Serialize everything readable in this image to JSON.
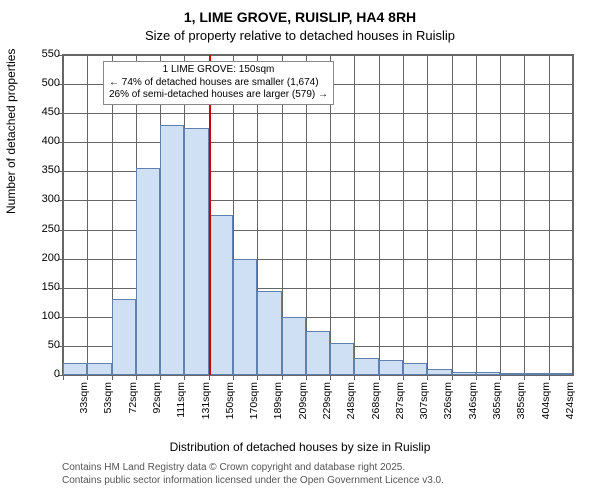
{
  "title": "1, LIME GROVE, RUISLIP, HA4 8RH",
  "subtitle": "Size of property relative to detached houses in Ruislip",
  "y_axis_label": "Number of detached properties",
  "x_axis_label": "Distribution of detached houses by size in Ruislip",
  "footnote_line1": "Contains HM Land Registry data © Crown copyright and database right 2025.",
  "footnote_line2": "Contains public sector information licensed under the Open Government Licence v3.0.",
  "chart": {
    "type": "histogram",
    "ylim": [
      0,
      550
    ],
    "ytick_step": 50,
    "yticks": [
      0,
      50,
      100,
      150,
      200,
      250,
      300,
      350,
      400,
      450,
      500,
      550
    ],
    "categories": [
      "33sqm",
      "53sqm",
      "72sqm",
      "92sqm",
      "111sqm",
      "131sqm",
      "150sqm",
      "170sqm",
      "189sqm",
      "209sqm",
      "229sqm",
      "248sqm",
      "268sqm",
      "287sqm",
      "307sqm",
      "326sqm",
      "346sqm",
      "365sqm",
      "385sqm",
      "404sqm",
      "424sqm"
    ],
    "values": [
      20,
      20,
      130,
      355,
      430,
      425,
      275,
      200,
      145,
      100,
      75,
      55,
      30,
      25,
      20,
      10,
      5,
      5,
      0,
      3,
      3
    ],
    "bar_fill": "#cfe0f5",
    "bar_border": "#6080b0",
    "grid_color": "#666666",
    "background_color": "#ffffff",
    "reference_line": {
      "index_after_category": 6,
      "color": "#cc0000",
      "width": 2
    },
    "annotation": {
      "line1": "1 LIME GROVE: 150sqm",
      "line2": "← 74% of detached houses are smaller (1,674)",
      "line3": "26% of semi-detached houses are larger (579) →"
    }
  }
}
